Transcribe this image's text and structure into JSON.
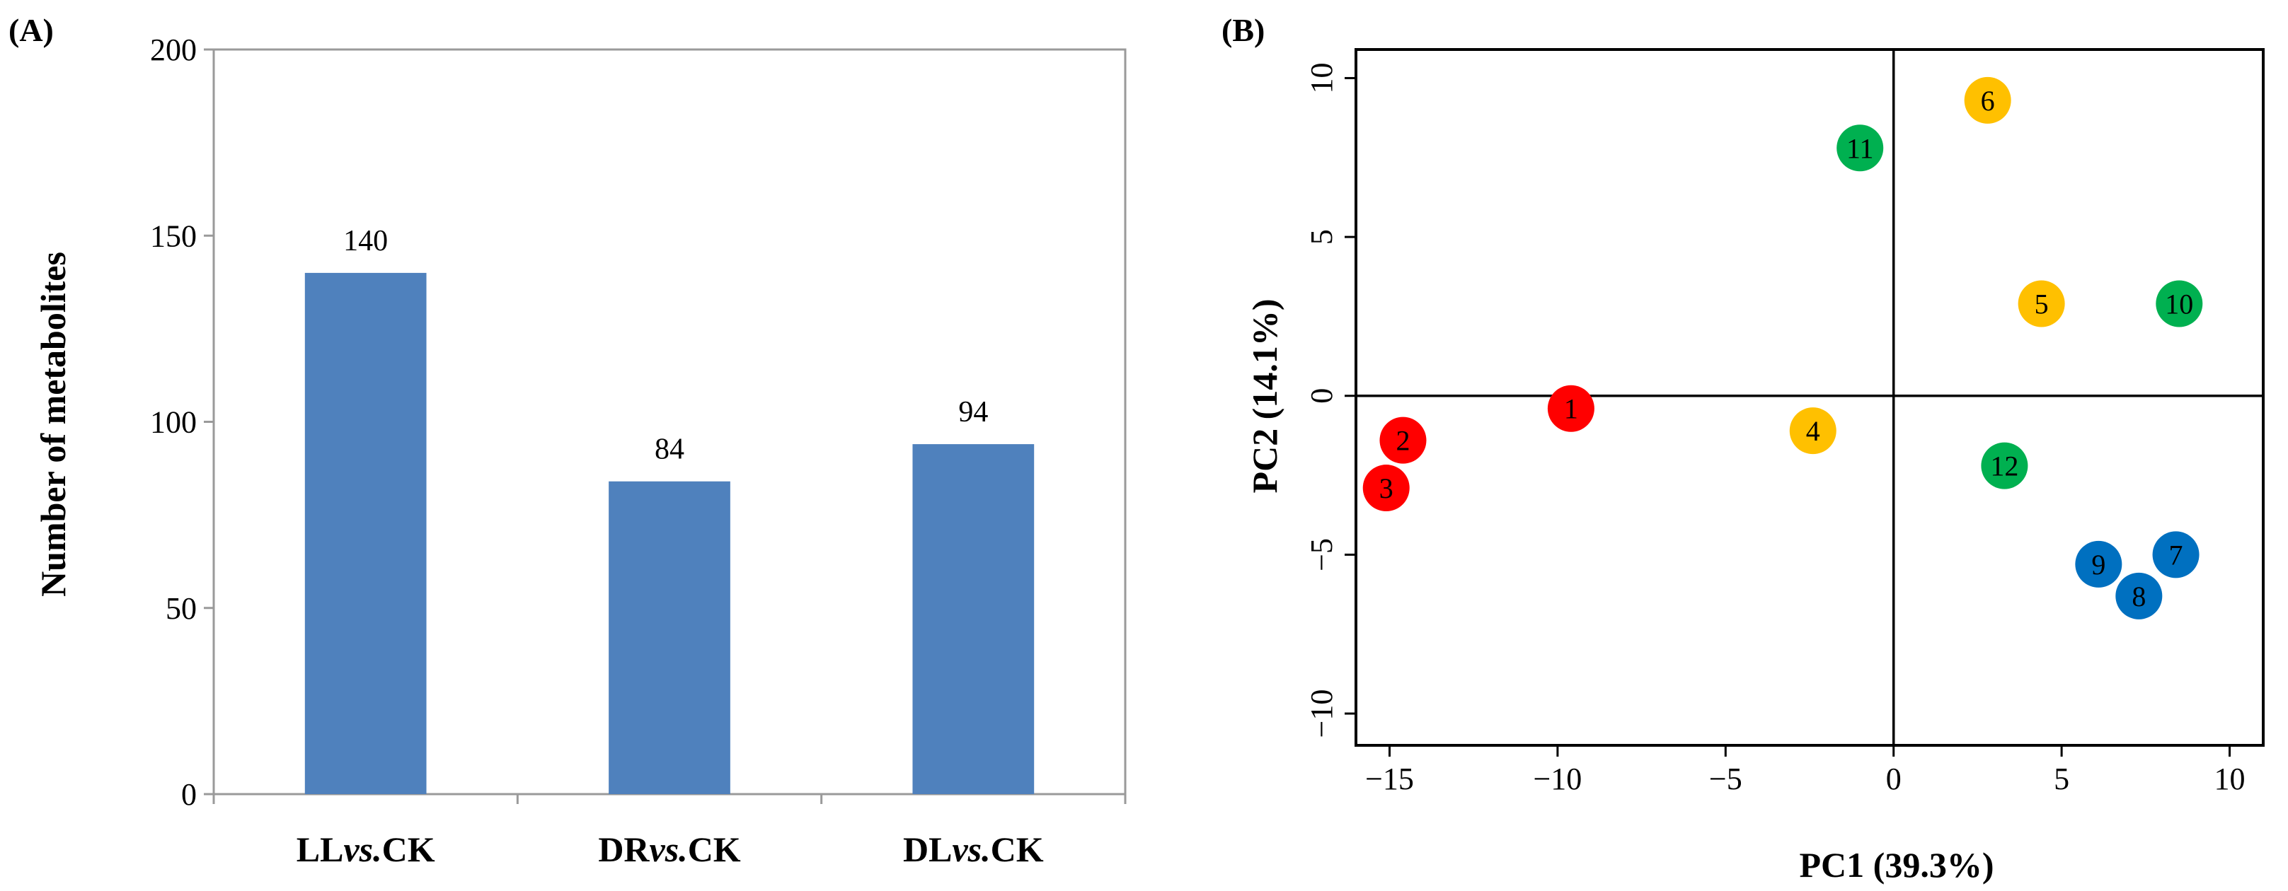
{
  "chart_data": [
    {
      "panel": "(A)",
      "type": "bar",
      "categories": [
        {
          "pre": "LL",
          "vs": "vs.",
          "post": "CK"
        },
        {
          "pre": "DR",
          "vs": "vs.",
          "post": "CK"
        },
        {
          "pre": "DL",
          "vs": "vs.",
          "post": "CK"
        }
      ],
      "values": [
        140,
        84,
        94
      ],
      "value_labels": [
        "140",
        "84",
        "94"
      ],
      "ylabel": "Number of metabolites",
      "xlabel": "",
      "ylim": [
        0,
        200
      ],
      "yticks": [
        0,
        50,
        100,
        150,
        200
      ],
      "bar_color": "#4F81BD",
      "grid": false
    },
    {
      "panel": "(B)",
      "type": "scatter",
      "xlabel": "PC1 (39.3%)",
      "ylabel": "PC2 (14.1%)",
      "xlim": [
        -16,
        11
      ],
      "ylim": [
        -11,
        10.9
      ],
      "xticks": [
        -15,
        -10,
        -5,
        0,
        5,
        10
      ],
      "yticks": [
        -10,
        -5,
        0,
        5,
        10
      ],
      "tick_labels_x": [
        "−15",
        "−10",
        "−5",
        "0",
        "5",
        "10"
      ],
      "tick_labels_y": [
        "−10",
        "−5",
        "0",
        "5",
        "10"
      ],
      "zero_lines": true,
      "groups": [
        {
          "color": "#FF0000",
          "points": [
            {
              "label": "1",
              "x": -9.6,
              "y": -0.4
            },
            {
              "label": "2",
              "x": -14.6,
              "y": -1.4
            },
            {
              "label": "3",
              "x": -15.1,
              "y": -2.9
            }
          ]
        },
        {
          "color": "#FFC000",
          "points": [
            {
              "label": "4",
              "x": -2.4,
              "y": -1.1
            },
            {
              "label": "5",
              "x": 4.4,
              "y": 2.9
            },
            {
              "label": "6",
              "x": 2.8,
              "y": 9.3
            }
          ]
        },
        {
          "color": "#0070C0",
          "points": [
            {
              "label": "7",
              "x": 8.4,
              "y": -5.0
            },
            {
              "label": "8",
              "x": 7.3,
              "y": -6.3
            },
            {
              "label": "9",
              "x": 6.1,
              "y": -5.3
            }
          ]
        },
        {
          "color": "#00B050",
          "points": [
            {
              "label": "10",
              "x": 8.5,
              "y": 2.9
            },
            {
              "label": "11",
              "x": -1.0,
              "y": 7.8
            },
            {
              "label": "12",
              "x": 3.3,
              "y": -2.2
            }
          ]
        }
      ]
    }
  ]
}
